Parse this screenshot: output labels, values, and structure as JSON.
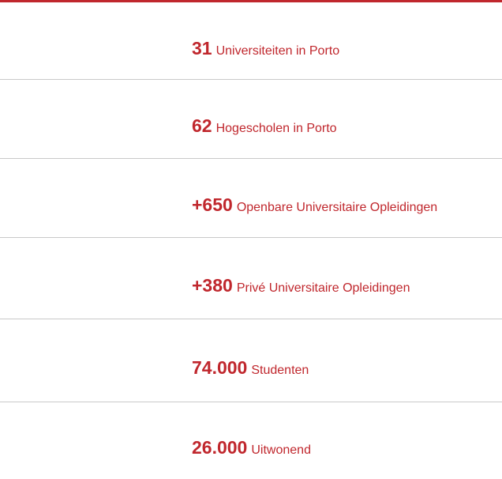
{
  "items": [
    {
      "number": "31",
      "label": "Universiteiten in Porto"
    },
    {
      "number": "62",
      "label": "Hogescholen in Porto"
    },
    {
      "number": "+650",
      "label": "Openbare Universitaire Opleidingen"
    },
    {
      "number": "+380",
      "label": "Privé Universitaire Opleidingen"
    },
    {
      "number": "74.000",
      "label": "Studenten"
    },
    {
      "number": "26.000",
      "label": "Uitwonend"
    }
  ]
}
